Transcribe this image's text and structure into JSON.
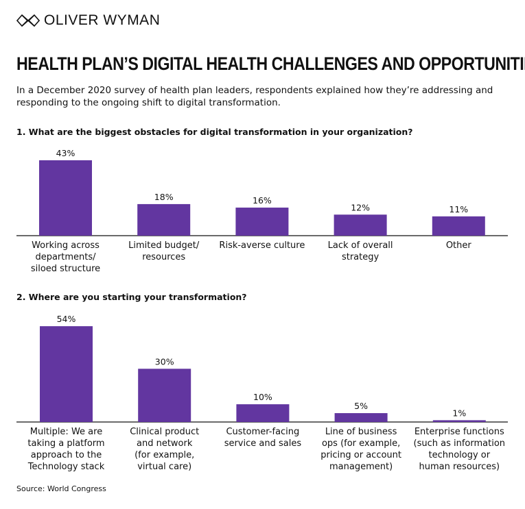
{
  "brand": "OLIVER WYMAN",
  "title": "HEALTH PLAN’S DIGITAL HEALTH CHALLENGES AND OPPORTUNITIES",
  "subtitle": "In a December 2020 survey of health plan leaders, respondents explained how they’re addressing and responding to the ongoing shift to digital transformation.",
  "source": "Source: World Congress",
  "bar_color": "#6236a0",
  "chart_data": [
    {
      "type": "bar",
      "title": "1. What are the biggest obstacles for digital transformation in your organization?",
      "categories": [
        [
          "Working across",
          "departments/",
          "siloed structure"
        ],
        [
          "Limited budget/",
          "resources"
        ],
        [
          "Risk-averse culture"
        ],
        [
          "Lack of overall",
          "strategy"
        ],
        [
          "Other"
        ]
      ],
      "values": [
        43,
        18,
        16,
        12,
        11
      ],
      "labels": [
        "43%",
        "18%",
        "16%",
        "12%",
        "11%"
      ],
      "unit": "%"
    },
    {
      "type": "bar",
      "title": "2. Where are you starting your transformation?",
      "categories": [
        [
          "Multiple: We are",
          "taking a platform",
          "approach to the",
          "Technology stack"
        ],
        [
          "Clinical product",
          "and network",
          "(for example,",
          "virtual care)"
        ],
        [
          "Customer-facing",
          "service and sales"
        ],
        [
          "Line of business",
          "ops (for example,",
          "pricing or account",
          "management)"
        ],
        [
          "Enterprise functions",
          "(such as information",
          "technology or",
          "human resources)"
        ]
      ],
      "values": [
        54,
        30,
        10,
        5,
        1
      ],
      "labels": [
        "54%",
        "30%",
        "10%",
        "5%",
        "1%"
      ],
      "unit": "%"
    }
  ]
}
